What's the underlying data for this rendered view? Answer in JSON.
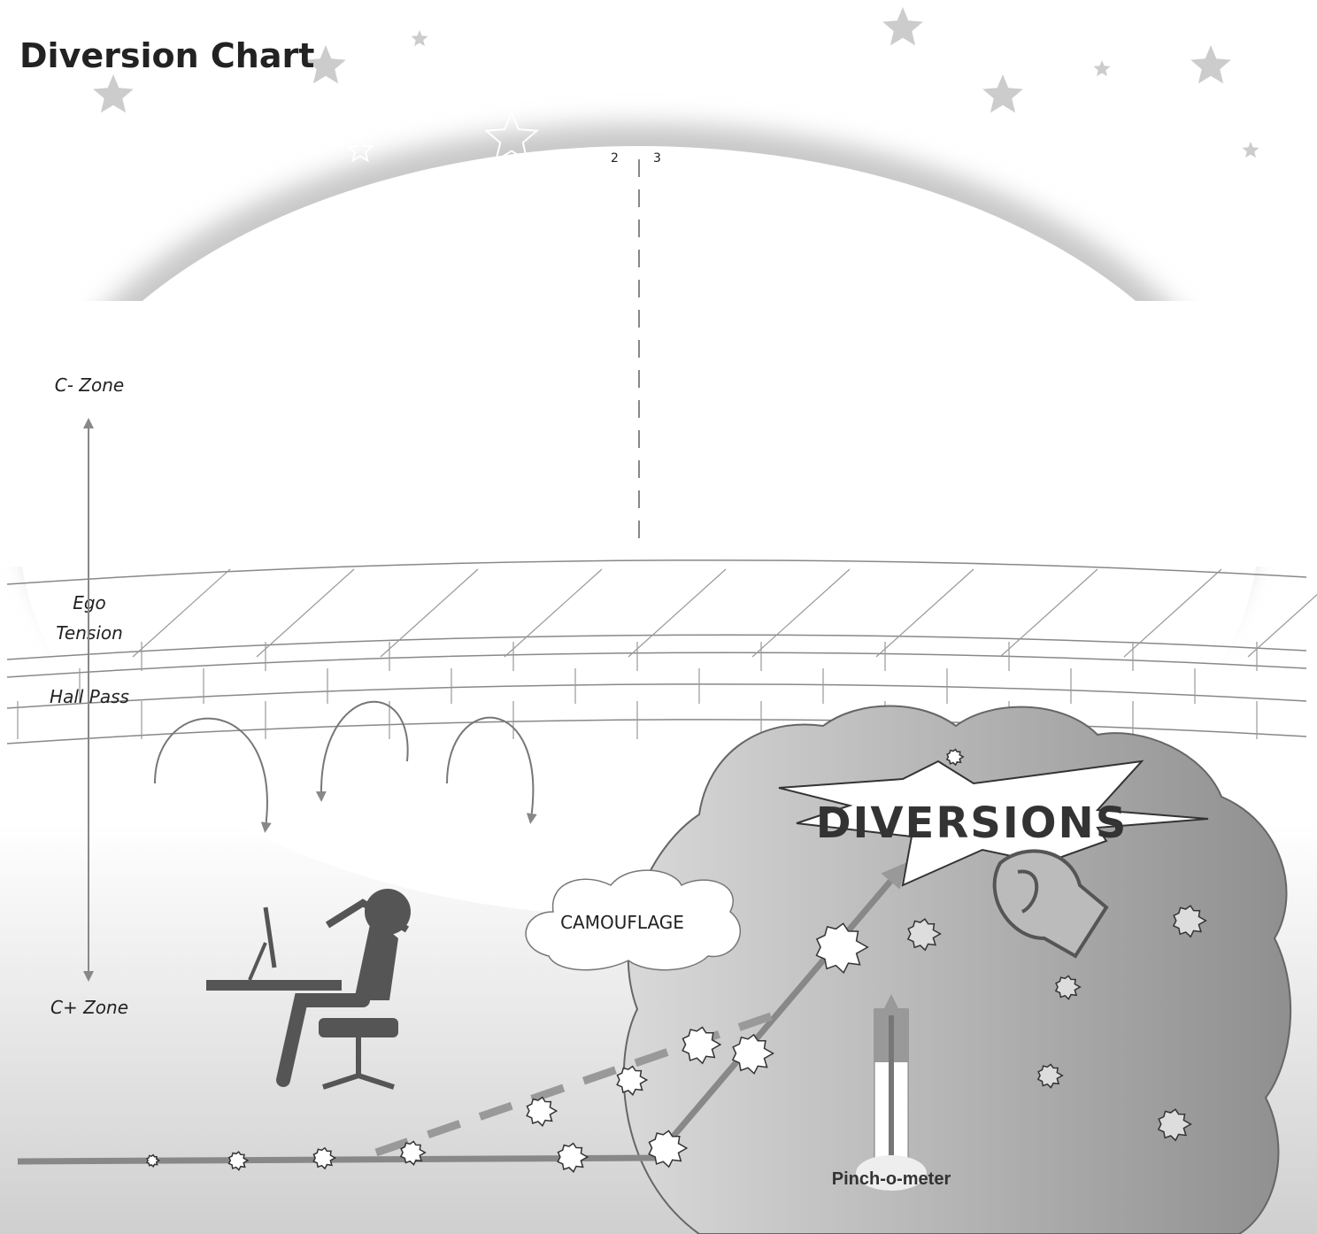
{
  "header": {
    "title": "Diversion Chart"
  },
  "markers": [
    "2",
    "3"
  ],
  "zones": {
    "top": "C- Zone",
    "bottom": "C+ Zone"
  },
  "layers": {
    "ego": [
      "Ego",
      "Tension"
    ],
    "hall_pass": "Hall Pass"
  },
  "labels": {
    "camouflage": "CAMOUFLAGE",
    "diversions": "DIVERSIONS",
    "meter": "Pinch-o-meter"
  }
}
